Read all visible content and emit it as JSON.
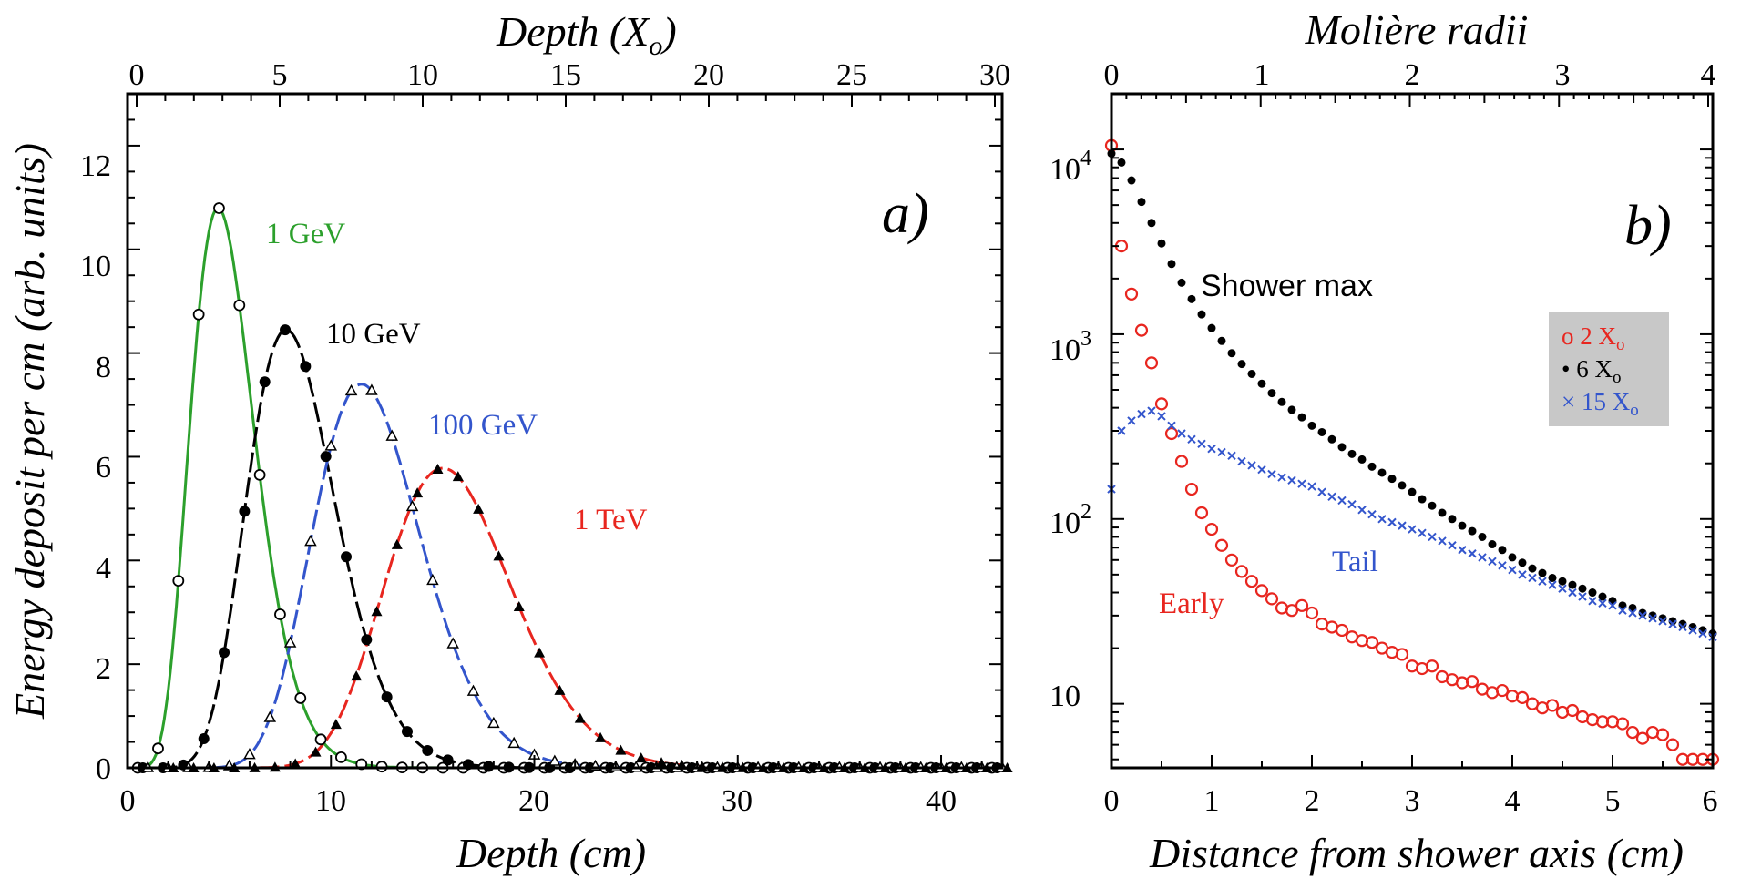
{
  "colors": {
    "green": "#2ca02c",
    "black": "#000000",
    "blue": "#3355cc",
    "red": "#e8261f",
    "legend_bg": "#c8c8c8"
  },
  "chart_data": [
    {
      "type": "line",
      "panel_label": "a)",
      "xlabel": "Depth (cm)",
      "ylabel": "Energy deposit per cm (arb. units)",
      "top_xlabel": "Depth (X",
      "top_xlabel_sub": "o",
      "top_xlabel_close": ")",
      "xlim": [
        0,
        43
      ],
      "ylim": [
        0,
        13
      ],
      "x_ticks": [
        "0",
        "10",
        "20",
        "30",
        "40"
      ],
      "y_ticks": [
        "0",
        "2",
        "4",
        "6",
        "8",
        "10",
        "12"
      ],
      "top_ticks": [
        "0",
        "5",
        "10",
        "15",
        "20",
        "25",
        "30"
      ],
      "series": [
        {
          "name": "1 GeV",
          "label": "1 GeV",
          "color_key": "green",
          "marker": "open-circle",
          "amp": 10.8,
          "peak": 4.45,
          "start": 0.0,
          "k": 1.78
        },
        {
          "name": "10 GeV",
          "label": "10 GeV",
          "color_key": "black",
          "marker": "filled-circle",
          "amp": 8.45,
          "peak": 7.8,
          "start": 0.0,
          "k": 1.63
        },
        {
          "name": "100 GeV",
          "label": "100 GeV",
          "color_key": "blue",
          "marker": "open-triangle",
          "amp": 7.4,
          "peak": 11.5,
          "start": 0.8,
          "k": 1.52
        },
        {
          "name": "1 TeV",
          "label": "1 TeV",
          "color_key": "red",
          "marker": "filled-triangle",
          "amp": 5.78,
          "peak": 15.5,
          "start": 1.5,
          "k": 1.45
        }
      ]
    },
    {
      "type": "scatter",
      "panel_label": "b)",
      "xlabel": "Distance from shower axis (cm)",
      "top_xlabel": "Molière radii",
      "xlim": [
        0,
        6
      ],
      "yscale": "log",
      "ylim": [
        4.5,
        20000
      ],
      "x_ticks": [
        "0",
        "1",
        "2",
        "3",
        "4",
        "5",
        "6"
      ],
      "top_ticks": [
        "0",
        "1",
        "2",
        "3",
        "4"
      ],
      "y_tick_labels": {
        "base": "10",
        "exp4": "4",
        "exp3": "3",
        "exp2": "2",
        "ten": "10"
      },
      "annotations": {
        "shower_max": "Shower max",
        "tail": "Tail",
        "early": "Early"
      },
      "legend": [
        {
          "symbol": "o",
          "text": "2 X",
          "sub": "o",
          "color_key": "red"
        },
        {
          "symbol": "•",
          "text": "6 X",
          "sub": "o",
          "color_key": "black"
        },
        {
          "symbol": "×",
          "text": "15 X",
          "sub": "o",
          "color_key": "blue"
        }
      ],
      "series": [
        {
          "name": "2 Xo (Early)",
          "color_key": "red",
          "marker": "open-circle",
          "x": [
            0.0,
            0.1,
            0.2,
            0.3,
            0.4,
            0.5,
            0.6,
            0.7,
            0.8,
            0.9,
            1.0,
            1.1,
            1.2,
            1.3,
            1.4,
            1.5,
            1.6,
            1.7,
            1.8,
            1.9,
            2.0,
            2.1,
            2.2,
            2.3,
            2.4,
            2.5,
            2.6,
            2.7,
            2.8,
            2.9,
            3.0,
            3.1,
            3.2,
            3.3,
            3.4,
            3.5,
            3.6,
            3.7,
            3.8,
            3.9,
            4.0,
            4.1,
            4.2,
            4.3,
            4.4,
            4.5,
            4.6,
            4.7,
            4.8,
            4.9,
            5.0,
            5.1,
            5.2,
            5.3,
            5.4,
            5.5,
            5.6,
            5.7,
            5.8,
            5.9,
            6.0
          ],
          "y": [
            10500,
            3000,
            1650,
            1050,
            700,
            420,
            290,
            205,
            145,
            108,
            88,
            72,
            60,
            52,
            46,
            41,
            37,
            33,
            32,
            34,
            31,
            27,
            26,
            25,
            23,
            22,
            21.5,
            20,
            19,
            18.5,
            16,
            15.5,
            16,
            14,
            13.5,
            13,
            13.2,
            12,
            11.5,
            11.8,
            11,
            10.8,
            10,
            9.5,
            9.8,
            9,
            9.2,
            8.5,
            8.2,
            8,
            8,
            7.8,
            7,
            6.5,
            7,
            6.8,
            6,
            5,
            5,
            5,
            5
          ]
        },
        {
          "name": "6 Xo (Shower max)",
          "color_key": "black",
          "marker": "filled-circle",
          "x": [
            0.0,
            0.1,
            0.2,
            0.3,
            0.4,
            0.5,
            0.6,
            0.7,
            0.8,
            0.9,
            1.0,
            1.1,
            1.2,
            1.3,
            1.4,
            1.5,
            1.6,
            1.7,
            1.8,
            1.9,
            2.0,
            2.1,
            2.2,
            2.3,
            2.4,
            2.5,
            2.6,
            2.7,
            2.8,
            2.9,
            3.0,
            3.1,
            3.2,
            3.3,
            3.4,
            3.5,
            3.6,
            3.7,
            3.8,
            3.9,
            4.0,
            4.1,
            4.2,
            4.3,
            4.4,
            4.5,
            4.6,
            4.7,
            4.8,
            4.9,
            5.0,
            5.1,
            5.2,
            5.3,
            5.4,
            5.5,
            5.6,
            5.7,
            5.8,
            5.9,
            6.0
          ],
          "y": [
            9500,
            8500,
            6800,
            5200,
            4000,
            3100,
            2400,
            1900,
            1550,
            1280,
            1080,
            920,
            790,
            690,
            610,
            540,
            480,
            430,
            390,
            355,
            320,
            295,
            270,
            245,
            225,
            210,
            192,
            178,
            165,
            152,
            140,
            128,
            118,
            108,
            100,
            92,
            86,
            80,
            73,
            68,
            62,
            58,
            54,
            51,
            48,
            46,
            44,
            42,
            40,
            38,
            36,
            34,
            33,
            31,
            30,
            29,
            28,
            27,
            26,
            25,
            24
          ]
        },
        {
          "name": "15 Xo (Tail)",
          "color_key": "blue",
          "marker": "cross",
          "x": [
            0.0,
            0.1,
            0.2,
            0.3,
            0.4,
            0.5,
            0.6,
            0.7,
            0.8,
            0.9,
            1.0,
            1.1,
            1.2,
            1.3,
            1.4,
            1.5,
            1.6,
            1.7,
            1.8,
            1.9,
            2.0,
            2.1,
            2.2,
            2.3,
            2.4,
            2.5,
            2.6,
            2.7,
            2.8,
            2.9,
            3.0,
            3.1,
            3.2,
            3.3,
            3.4,
            3.5,
            3.6,
            3.7,
            3.8,
            3.9,
            4.0,
            4.1,
            4.2,
            4.3,
            4.4,
            4.5,
            4.6,
            4.7,
            4.8,
            4.9,
            5.0,
            5.1,
            5.2,
            5.3,
            5.4,
            5.5,
            5.6,
            5.7,
            5.8,
            5.9,
            6.0
          ],
          "y": [
            145,
            300,
            340,
            370,
            385,
            360,
            320,
            290,
            270,
            255,
            240,
            230,
            220,
            205,
            195,
            185,
            175,
            168,
            162,
            155,
            150,
            140,
            132,
            126,
            120,
            112,
            106,
            100,
            96,
            92,
            88,
            84,
            80,
            76,
            72,
            68,
            65,
            62,
            59,
            56,
            53,
            50,
            48,
            46,
            44,
            42,
            40,
            38,
            36,
            35,
            34,
            32,
            31,
            30,
            29,
            28,
            27,
            26,
            25,
            24,
            23
          ]
        }
      ]
    }
  ]
}
